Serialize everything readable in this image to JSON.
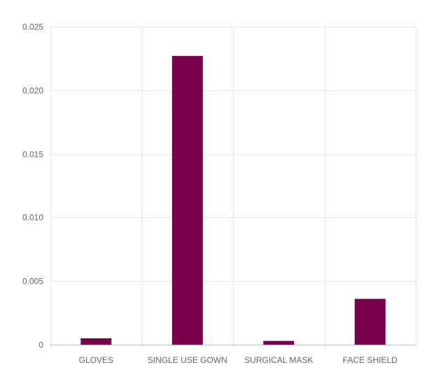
{
  "chart_data": {
    "type": "bar",
    "categories": [
      "GLOVES",
      "SINGLE USE GOWN",
      "SURGICAL MASK",
      "FACE SHIELD"
    ],
    "values": [
      0.0005,
      0.0227,
      0.0003,
      0.0036
    ],
    "ylim": [
      0,
      0.025
    ],
    "yticks": [
      0,
      0.005,
      0.01,
      0.015,
      0.02,
      0.025
    ],
    "ytick_labels": [
      "0",
      "0.005",
      "0.010",
      "0.015",
      "0.020",
      "0.025"
    ],
    "title": "",
    "xlabel": "",
    "ylabel": "",
    "grid": true,
    "legend": "none",
    "bar_color": "#7a004b"
  }
}
